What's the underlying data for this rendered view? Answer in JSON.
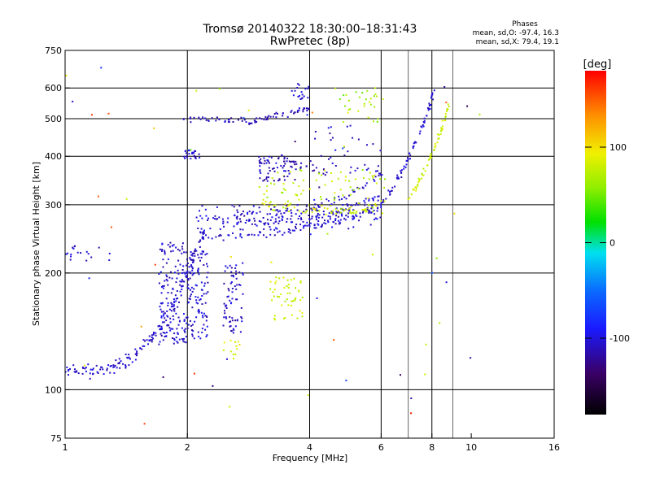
{
  "chart_data": {
    "type": "scatter",
    "title": "Tromsø 20140322 18:30:00–18:31:43",
    "subtitle": "RwPretec (8p)",
    "xlabel": "Frequency [MHz]",
    "ylabel": "Stationary phase Virtual Height [km]",
    "x_scale": "log",
    "y_scale": "log",
    "xlim": [
      1,
      16
    ],
    "ylim": [
      75,
      750
    ],
    "x_ticks": [
      1,
      2,
      4,
      6,
      8,
      10,
      16
    ],
    "x_tick_labels": [
      "1",
      "2",
      "4",
      "6",
      "8",
      "10",
      "16"
    ],
    "x_grid": [
      2,
      4,
      6,
      8
    ],
    "x_minor_grid": [
      7,
      9
    ],
    "y_ticks": [
      75,
      100,
      200,
      300,
      400,
      500,
      600,
      750
    ],
    "y_tick_labels": [
      "75",
      "100",
      "200",
      "300",
      "400",
      "500",
      "600",
      "750"
    ],
    "grid": true,
    "info": {
      "title": "Phases",
      "line_o": "mean, sd,O:  -97.4, 16.3",
      "line_x": "mean, sd,X:  79.4, 19.1"
    },
    "colorbar": {
      "label": "[deg]",
      "range": [
        -180,
        180
      ],
      "ticks": [
        100,
        0,
        -100
      ],
      "tick_labels": [
        "100",
        "0",
        "-100"
      ]
    },
    "traces": [
      {
        "name": "o-low",
        "phase": -105,
        "spread": 12,
        "jitter": 0.035,
        "n": 14,
        "points": [
          [
            1.0,
            113
          ],
          [
            1.1,
            112
          ],
          [
            1.2,
            112
          ],
          [
            1.3,
            114
          ],
          [
            1.4,
            118
          ],
          [
            1.5,
            124
          ],
          [
            1.6,
            132
          ],
          [
            1.7,
            142
          ],
          [
            1.8,
            158
          ],
          [
            1.9,
            175
          ],
          [
            2.0,
            195
          ],
          [
            2.1,
            225
          ],
          [
            2.2,
            255
          ]
        ]
      },
      {
        "name": "o-F1",
        "phase": -105,
        "spread": 12,
        "jitter": 0.02,
        "n": 10,
        "points": [
          [
            2.1,
            250
          ],
          [
            2.4,
            248
          ],
          [
            2.8,
            249
          ],
          [
            3.2,
            252
          ],
          [
            3.6,
            256
          ],
          [
            4.0,
            262
          ],
          [
            4.5,
            270
          ],
          [
            5.0,
            278
          ],
          [
            5.5,
            286
          ],
          [
            6.0,
            298
          ]
        ]
      },
      {
        "name": "o-F2a",
        "phase": -105,
        "spread": 12,
        "jitter": 0.02,
        "n": 10,
        "points": [
          [
            2.2,
            278
          ],
          [
            2.6,
            272
          ],
          [
            3.0,
            270
          ],
          [
            3.5,
            272
          ],
          [
            4.0,
            278
          ],
          [
            4.5,
            286
          ],
          [
            5.0,
            295
          ],
          [
            5.5,
            305
          ],
          [
            6.0,
            318
          ]
        ]
      },
      {
        "name": "o-F2b",
        "phase": -110,
        "spread": 12,
        "jitter": 0.02,
        "n": 9,
        "points": [
          [
            2.6,
            290
          ],
          [
            3.0,
            285
          ],
          [
            3.5,
            288
          ],
          [
            4.0,
            295
          ],
          [
            4.5,
            305
          ],
          [
            5.0,
            318
          ],
          [
            5.5,
            335
          ],
          [
            6.0,
            360
          ]
        ]
      },
      {
        "name": "o-up",
        "phase": -105,
        "spread": 10,
        "jitter": 0.02,
        "n": 12,
        "points": [
          [
            6.0,
            300
          ],
          [
            6.4,
            330
          ],
          [
            6.8,
            370
          ],
          [
            7.2,
            420
          ],
          [
            7.6,
            480
          ],
          [
            7.9,
            540
          ],
          [
            8.1,
            600
          ]
        ]
      },
      {
        "name": "x-F",
        "phase": 82,
        "spread": 16,
        "jitter": 0.02,
        "n": 10,
        "points": [
          [
            3.0,
            305
          ],
          [
            3.5,
            295
          ],
          [
            4.0,
            290
          ],
          [
            4.5,
            288
          ],
          [
            5.0,
            290
          ],
          [
            5.5,
            294
          ],
          [
            6.0,
            300
          ]
        ]
      },
      {
        "name": "x-up",
        "phase": 80,
        "spread": 16,
        "jitter": 0.02,
        "n": 12,
        "points": [
          [
            7.0,
            310
          ],
          [
            7.4,
            340
          ],
          [
            7.8,
            380
          ],
          [
            8.2,
            430
          ],
          [
            8.5,
            480
          ],
          [
            8.8,
            540
          ]
        ]
      },
      {
        "name": "o-hi",
        "phase": -110,
        "spread": 12,
        "jitter": 0.015,
        "n": 9,
        "points": [
          [
            2.8,
            485
          ],
          [
            3.0,
            495
          ],
          [
            3.2,
            505
          ],
          [
            3.5,
            515
          ],
          [
            3.8,
            525
          ],
          [
            4.0,
            535
          ]
        ]
      },
      {
        "name": "o-mid",
        "phase": -115,
        "spread": 12,
        "jitter": 0.02,
        "n": 9,
        "points": [
          [
            3.3,
            400
          ],
          [
            3.6,
            385
          ],
          [
            4.0,
            370
          ],
          [
            4.4,
            360
          ]
        ]
      }
    ],
    "clusters": [
      {
        "name": "ez-col1",
        "phase": -105,
        "spread": 15,
        "n": 150,
        "x": [
          1.7,
          2.0
        ],
        "y": [
          130,
          240
        ]
      },
      {
        "name": "ez-col2",
        "phase": -105,
        "spread": 15,
        "n": 110,
        "x": [
          2.0,
          2.25
        ],
        "y": [
          135,
          230
        ]
      },
      {
        "name": "ez-col3",
        "phase": -105,
        "spread": 15,
        "n": 70,
        "x": [
          2.45,
          2.75
        ],
        "y": [
          140,
          215
        ]
      },
      {
        "name": "f-band",
        "phase": -105,
        "spread": 15,
        "n": 130,
        "x": [
          2.1,
          6.0
        ],
        "y": [
          258,
          300
        ]
      },
      {
        "name": "x-upper",
        "phase": 75,
        "spread": 18,
        "n": 90,
        "x": [
          3.0,
          6.2
        ],
        "y": [
          285,
          370
        ]
      },
      {
        "name": "x-es",
        "phase": 80,
        "spread": 15,
        "n": 50,
        "x": [
          3.2,
          3.85
        ],
        "y": [
          150,
          195
        ]
      },
      {
        "name": "x-low",
        "phase": 85,
        "spread": 12,
        "n": 12,
        "x": [
          2.45,
          2.7
        ],
        "y": [
          120,
          135
        ]
      },
      {
        "name": "o-high",
        "phase": -110,
        "spread": 15,
        "n": 60,
        "x": [
          3.0,
          3.7
        ],
        "y": [
          345,
          400
        ]
      },
      {
        "name": "o-2",
        "phase": -105,
        "spread": 12,
        "n": 25,
        "x": [
          1.95,
          2.15
        ],
        "y": [
          390,
          415
        ]
      },
      {
        "name": "o-3",
        "phase": -110,
        "spread": 12,
        "n": 30,
        "x": [
          1.95,
          2.8
        ],
        "y": [
          490,
          505
        ]
      },
      {
        "name": "o-4",
        "phase": -110,
        "spread": 12,
        "n": 35,
        "x": [
          4.0,
          6.0
        ],
        "y": [
          360,
          480
        ]
      },
      {
        "name": "x-f2",
        "phase": 70,
        "spread": 20,
        "n": 30,
        "x": [
          4.6,
          6.1
        ],
        "y": [
          490,
          600
        ]
      },
      {
        "name": "o-1",
        "phase": -105,
        "spread": 12,
        "n": 18,
        "x": [
          1.0,
          1.3
        ],
        "y": [
          215,
          235
        ]
      },
      {
        "name": "o-5",
        "phase": -105,
        "spread": 12,
        "n": 18,
        "x": [
          3.6,
          4.0
        ],
        "y": [
          560,
          620
        ]
      },
      {
        "name": "misc-o",
        "phase": -100,
        "spread": 40,
        "n": 25,
        "x": [
          1.0,
          10.5
        ],
        "y": [
          80,
          700
        ]
      },
      {
        "name": "misc-x",
        "phase": 85,
        "spread": 40,
        "n": 25,
        "x": [
          1.0,
          10.5
        ],
        "y": [
          80,
          700
        ]
      },
      {
        "name": "misc-red",
        "phase": 160,
        "spread": 15,
        "n": 10,
        "x": [
          1.0,
          10.5
        ],
        "y": [
          80,
          700
        ]
      }
    ]
  }
}
